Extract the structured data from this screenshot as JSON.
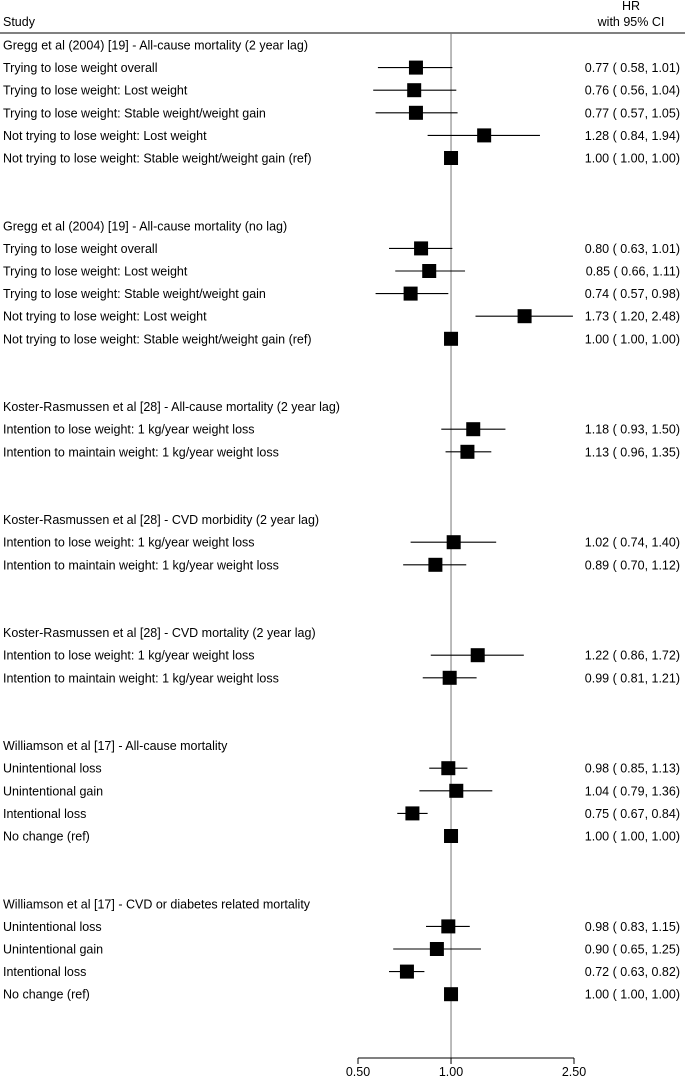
{
  "chart_data": {
    "type": "forest",
    "header": {
      "study": "Study",
      "hr_line1": "HR",
      "hr_line2": "with 95% CI"
    },
    "x_axis": {
      "scale": "log",
      "ticks": [
        0.5,
        1.0,
        2.5
      ],
      "tick_labels": [
        "0.50",
        "1.00",
        "2.50"
      ],
      "reference": 1.0
    },
    "groups": [
      {
        "title": "Gregg et al (2004) [19] - All-cause mortality  (2 year lag)",
        "rows": [
          {
            "label": "Trying to lose weight overall",
            "hr": 0.77,
            "lo": 0.58,
            "hi": 1.01,
            "ci_text": "0.77 ( 0.58,  1.01)"
          },
          {
            "label": "Trying to lose weight: Lost weight",
            "hr": 0.76,
            "lo": 0.56,
            "hi": 1.04,
            "ci_text": "0.76 ( 0.56,  1.04)"
          },
          {
            "label": "Trying to lose weight: Stable weight/weight gain",
            "hr": 0.77,
            "lo": 0.57,
            "hi": 1.05,
            "ci_text": "0.77 ( 0.57,  1.05)"
          },
          {
            "label": "Not trying to lose weight: Lost weight",
            "hr": 1.28,
            "lo": 0.84,
            "hi": 1.94,
            "ci_text": "1.28 ( 0.84,  1.94)"
          },
          {
            "label": "Not trying to lose weight: Stable weight/weight gain (ref)",
            "hr": 1.0,
            "lo": 1.0,
            "hi": 1.0,
            "ci_text": "1.00 ( 1.00,  1.00)"
          }
        ]
      },
      {
        "title": "Gregg et al (2004) [19] - All-cause mortality (no lag)",
        "rows": [
          {
            "label": "Trying to lose weight overall",
            "hr": 0.8,
            "lo": 0.63,
            "hi": 1.01,
            "ci_text": "0.80 ( 0.63,  1.01)"
          },
          {
            "label": "Trying to lose weight: Lost weight",
            "hr": 0.85,
            "lo": 0.66,
            "hi": 1.11,
            "ci_text": "0.85 ( 0.66,  1.11)"
          },
          {
            "label": "Trying to lose weight: Stable weight/weight gain",
            "hr": 0.74,
            "lo": 0.57,
            "hi": 0.98,
            "ci_text": "0.74 ( 0.57,  0.98)"
          },
          {
            "label": "Not trying to lose weight: Lost weight",
            "hr": 1.73,
            "lo": 1.2,
            "hi": 2.48,
            "ci_text": "1.73 ( 1.20,  2.48)"
          },
          {
            "label": "Not trying to lose weight: Stable weight/weight gain (ref)",
            "hr": 1.0,
            "lo": 1.0,
            "hi": 1.0,
            "ci_text": "1.00 ( 1.00,  1.00)"
          }
        ]
      },
      {
        "title": "Koster-Rasmussen et al [28] - All-cause mortality (2 year lag)",
        "rows": [
          {
            "label": "Intention to lose weight: 1 kg/year weight loss",
            "hr": 1.18,
            "lo": 0.93,
            "hi": 1.5,
            "ci_text": "1.18 ( 0.93,  1.50)"
          },
          {
            "label": "Intention to maintain weight: 1 kg/year weight loss",
            "hr": 1.13,
            "lo": 0.96,
            "hi": 1.35,
            "ci_text": "1.13 ( 0.96,  1.35)"
          }
        ]
      },
      {
        "title": "Koster-Rasmussen et al [28] - CVD morbidity (2 year lag)",
        "rows": [
          {
            "label": "Intention to lose weight: 1 kg/year weight loss",
            "hr": 1.02,
            "lo": 0.74,
            "hi": 1.4,
            "ci_text": "1.02 ( 0.74,  1.40)"
          },
          {
            "label": "Intention to maintain weight: 1 kg/year weight loss",
            "hr": 0.89,
            "lo": 0.7,
            "hi": 1.12,
            "ci_text": "0.89 ( 0.70,  1.12)"
          }
        ]
      },
      {
        "title": "Koster-Rasmussen et al [28] - CVD mortality (2 year lag)",
        "rows": [
          {
            "label": "Intention to lose weight: 1 kg/year weight loss",
            "hr": 1.22,
            "lo": 0.86,
            "hi": 1.72,
            "ci_text": "1.22 ( 0.86,  1.72)"
          },
          {
            "label": "Intention to maintain weight: 1 kg/year weight loss",
            "hr": 0.99,
            "lo": 0.81,
            "hi": 1.21,
            "ci_text": "0.99 ( 0.81,  1.21)"
          }
        ]
      },
      {
        "title": "Williamson et al [17] - All-cause mortality",
        "rows": [
          {
            "label": "Unintentional loss",
            "hr": 0.98,
            "lo": 0.85,
            "hi": 1.13,
            "ci_text": "0.98 ( 0.85,  1.13)"
          },
          {
            "label": "Unintentional gain",
            "hr": 1.04,
            "lo": 0.79,
            "hi": 1.36,
            "ci_text": "1.04 ( 0.79,  1.36)"
          },
          {
            "label": "Intentional loss",
            "hr": 0.75,
            "lo": 0.67,
            "hi": 0.84,
            "ci_text": "0.75 ( 0.67,  0.84)"
          },
          {
            "label": "No change (ref)",
            "hr": 1.0,
            "lo": 1.0,
            "hi": 1.0,
            "ci_text": "1.00 ( 1.00,  1.00)"
          }
        ]
      },
      {
        "title": "Williamson et al [17] - CVD or diabetes related mortality",
        "rows": [
          {
            "label": "Unintentional loss",
            "hr": 0.98,
            "lo": 0.83,
            "hi": 1.15,
            "ci_text": "0.98 ( 0.83,  1.15)"
          },
          {
            "label": "Unintentional gain",
            "hr": 0.9,
            "lo": 0.65,
            "hi": 1.25,
            "ci_text": "0.90 ( 0.65,  1.25)"
          },
          {
            "label": "Intentional loss",
            "hr": 0.72,
            "lo": 0.63,
            "hi": 0.82,
            "ci_text": "0.72 ( 0.63,  0.82)"
          },
          {
            "label": "No change (ref)",
            "hr": 1.0,
            "lo": 1.0,
            "hi": 1.0,
            "ci_text": "1.00 ( 1.00,  1.00)"
          }
        ]
      }
    ]
  }
}
